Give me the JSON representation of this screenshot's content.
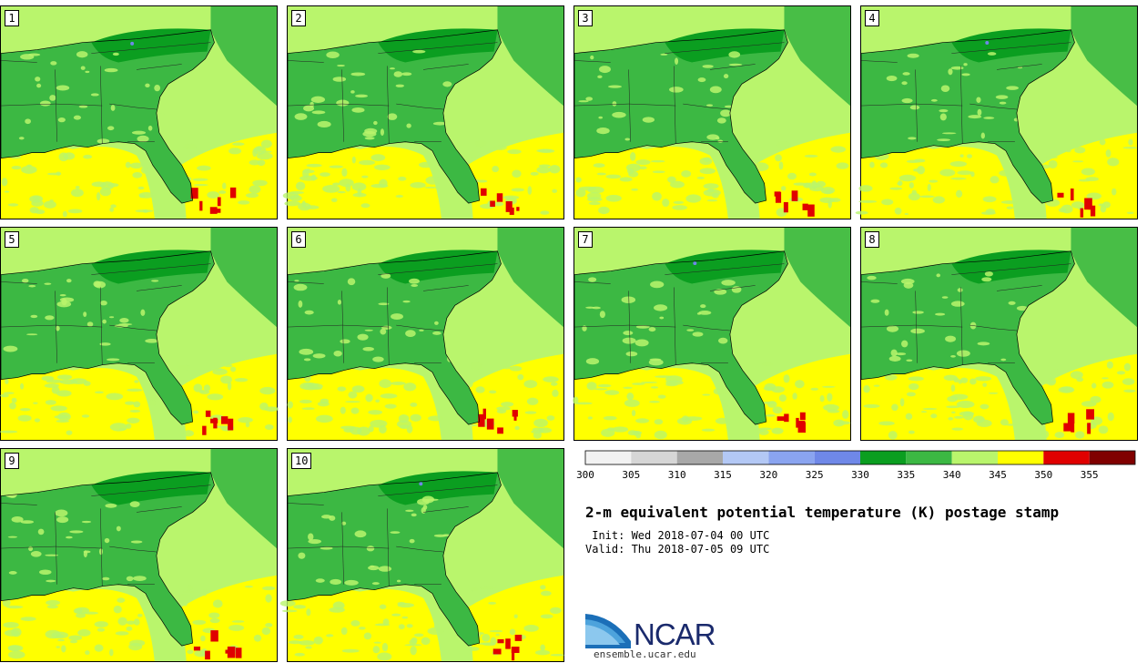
{
  "panels": [
    {
      "label": "1"
    },
    {
      "label": "2"
    },
    {
      "label": "3"
    },
    {
      "label": "4"
    },
    {
      "label": "5"
    },
    {
      "label": "6"
    },
    {
      "label": "7"
    },
    {
      "label": "8"
    },
    {
      "label": "9"
    },
    {
      "label": "10"
    }
  ],
  "colorbar": {
    "colors": [
      "#f2f2f2",
      "#d6d6d6",
      "#a8a8a8",
      "#b3c8f5",
      "#8aa4f0",
      "#6f88e8",
      "#0b9e20",
      "#3cb843",
      "#b9f56c",
      "#ffff00",
      "#e00000",
      "#800000"
    ],
    "ticks": [
      "300",
      "305",
      "310",
      "315",
      "320",
      "325",
      "330",
      "335",
      "340",
      "345",
      "350",
      "355"
    ]
  },
  "title": "2-m equivalent potential temperature (K) postage stamp",
  "init": " Init: Wed 2018-07-04 00 UTC",
  "valid": "Valid: Thu 2018-07-05 09 UTC",
  "logo": {
    "name": "NCAR",
    "url": "ensemble.ucar.edu"
  },
  "map_colors": {
    "ocean": "#b9f56c",
    "land": "#3cb843",
    "dark_land": "#0b9e20",
    "gulf_warm": "#ffff00",
    "hot": "#e00000",
    "cool": "#6f88e8"
  }
}
